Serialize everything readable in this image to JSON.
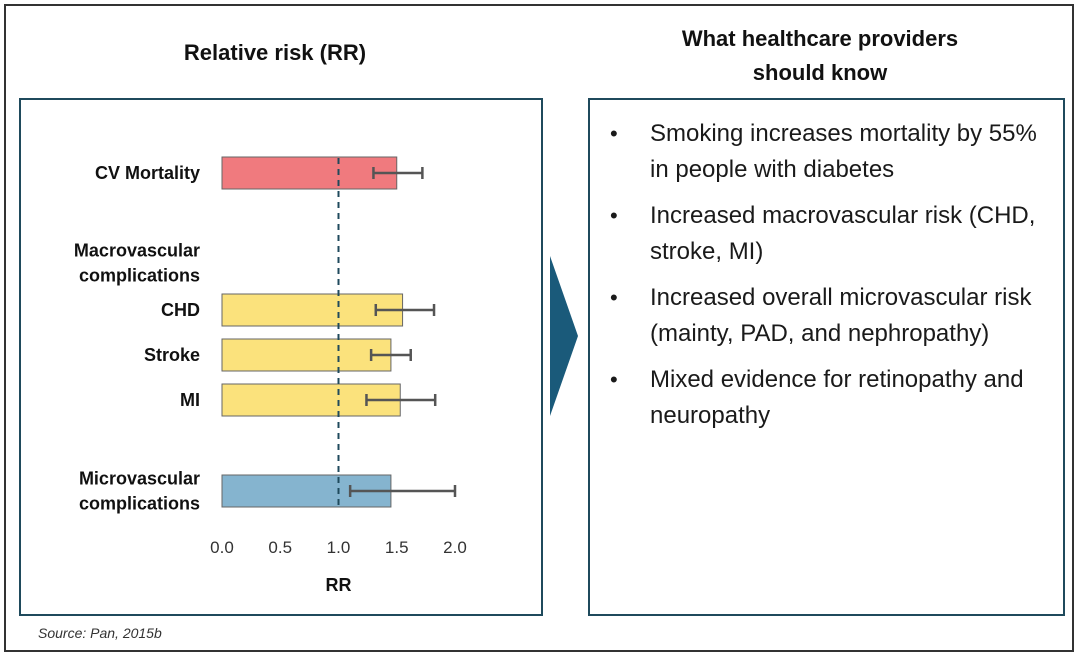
{
  "left_title": "Relative risk (RR)",
  "right_title_line1": "What healthcare providers",
  "right_title_line2": "should know",
  "bullets": [
    {
      "marker": "•",
      "text": "Smoking increases mortality by 55% in people with diabetes"
    },
    {
      "marker": "•",
      "text": "Increased macrovascular risk (CHD, stroke, MI)"
    },
    {
      "marker": "•",
      "text": "Increased overall microvascular risk (mainty, PAD, and nephropathy)"
    },
    {
      "marker": "•",
      "text": "Mixed evidence for retinopathy and neuropathy"
    }
  ],
  "source": "Source: Pan, 2015b",
  "chart_data": {
    "type": "bar",
    "orientation": "horizontal",
    "xlabel": "RR",
    "xlim": [
      0,
      2.0
    ],
    "x_ticks": [
      "0.0",
      "0.5",
      "1.0",
      "1.5",
      "2.0"
    ],
    "reference_line": 1.0,
    "grid": false,
    "group_labels": [
      {
        "text_lines": [
          "Macrovascular",
          "complications"
        ]
      }
    ],
    "rows": [
      {
        "label_lines": [
          "CV Mortality"
        ],
        "value": 1.5,
        "ci_low": 1.3,
        "ci_high": 1.72,
        "color": "#f07a7e"
      },
      {
        "label_lines": [
          "CHD"
        ],
        "value": 1.55,
        "ci_low": 1.32,
        "ci_high": 1.82,
        "color": "#fbe27c"
      },
      {
        "label_lines": [
          "Stroke"
        ],
        "value": 1.45,
        "ci_low": 1.28,
        "ci_high": 1.62,
        "color": "#fbe27c"
      },
      {
        "label_lines": [
          "MI"
        ],
        "value": 1.53,
        "ci_low": 1.24,
        "ci_high": 1.83,
        "color": "#fbe27c"
      },
      {
        "label_lines": [
          "Microvascular",
          "complications"
        ],
        "value": 1.45,
        "ci_low": 1.1,
        "ci_high": 2.0,
        "color": "#85b4cf"
      }
    ]
  }
}
